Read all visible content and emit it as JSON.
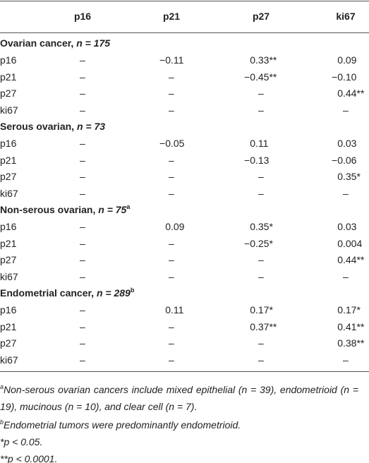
{
  "table": {
    "columns": [
      "p16",
      "p21",
      "p27",
      "ki67"
    ],
    "sections": [
      {
        "title": "Ovarian cancer,",
        "n": "n = 175",
        "rows": [
          {
            "label": "p16",
            "cells": [
              "–",
              "−0.11",
              "0.33**",
              "0.09"
            ]
          },
          {
            "label": "p21",
            "cells": [
              "–",
              "–",
              "−0.45**",
              "−0.10"
            ]
          },
          {
            "label": "p27",
            "cells": [
              "–",
              "–",
              "–",
              "0.44**"
            ]
          },
          {
            "label": "ki67",
            "cells": [
              "–",
              "–",
              "–",
              "–"
            ]
          }
        ]
      },
      {
        "title": "Serous ovarian,",
        "n": "n = 73",
        "rows": [
          {
            "label": "p16",
            "cells": [
              "–",
              "−0.05",
              "0.11",
              "0.03"
            ]
          },
          {
            "label": "p21",
            "cells": [
              "–",
              "–",
              "−0.13",
              "−0.06"
            ]
          },
          {
            "label": "p27",
            "cells": [
              "–",
              "–",
              "–",
              "0.35*"
            ]
          },
          {
            "label": "ki67",
            "cells": [
              "–",
              "–",
              "–",
              "–"
            ]
          }
        ]
      },
      {
        "title": "Non-serous ovarian,",
        "n": "n = 75",
        "note": "a",
        "rows": [
          {
            "label": "p16",
            "cells": [
              "–",
              "0.09",
              "0.35*",
              "0.03"
            ]
          },
          {
            "label": "p21",
            "cells": [
              "–",
              "–",
              "−0.25*",
              "0.004"
            ]
          },
          {
            "label": "p27",
            "cells": [
              "–",
              "–",
              "–",
              "0.44**"
            ]
          },
          {
            "label": "ki67",
            "cells": [
              "–",
              "–",
              "–",
              "–"
            ]
          }
        ]
      },
      {
        "title": "Endometrial cancer,",
        "n": "n = 289",
        "note": "b",
        "rows": [
          {
            "label": "p16",
            "cells": [
              "–",
              "0.11",
              "0.17*",
              "0.17*"
            ]
          },
          {
            "label": "p21",
            "cells": [
              "–",
              "–",
              "0.37**",
              "0.41**"
            ]
          },
          {
            "label": "p27",
            "cells": [
              "–",
              "–",
              "–",
              "0.38**"
            ]
          },
          {
            "label": "ki67",
            "cells": [
              "–",
              "–",
              "–",
              "–"
            ]
          }
        ]
      }
    ]
  },
  "footnotes": [
    {
      "marker": "a",
      "text": "Non-serous ovarian cancers include mixed epithelial (n = 39), endometrioid (n = 19), mucinous (n = 10), and clear cell (n = 7)."
    },
    {
      "marker": "b",
      "text": "Endometrial tumors were predominantly endometrioid."
    },
    {
      "text": "*p < 0.05."
    },
    {
      "text": "**p < 0.0001."
    }
  ]
}
